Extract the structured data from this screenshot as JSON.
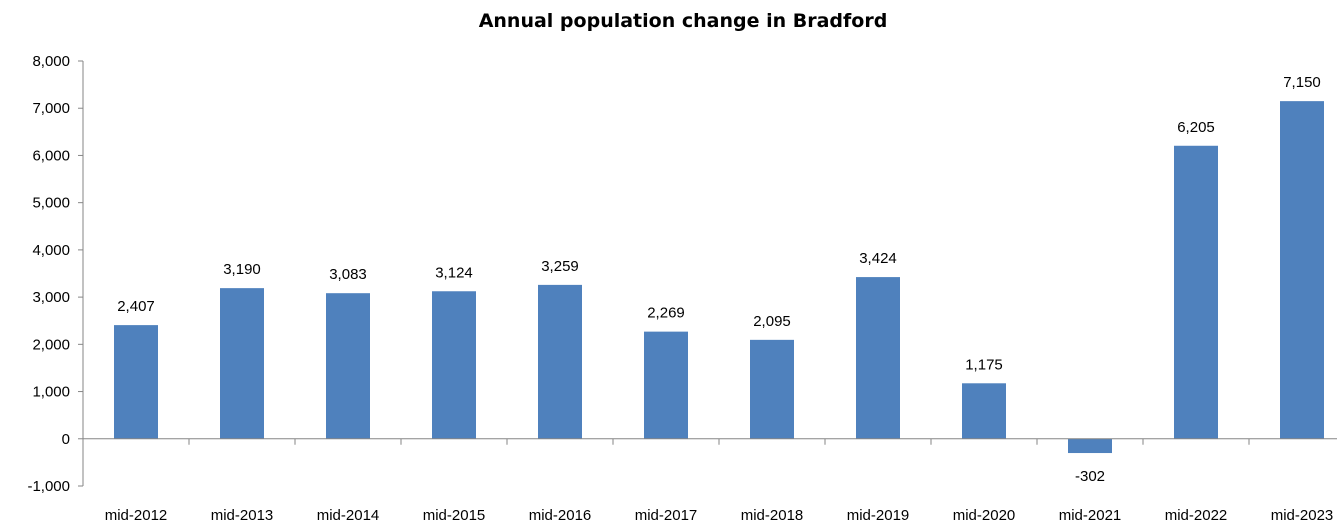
{
  "chart_data": {
    "type": "bar",
    "title": "Annual population change in Bradford",
    "xlabel": "",
    "ylabel": "",
    "categories": [
      "mid-2012",
      "mid-2013",
      "mid-2014",
      "mid-2015",
      "mid-2016",
      "mid-2017",
      "mid-2018",
      "mid-2019",
      "mid-2020",
      "mid-2021",
      "mid-2022",
      "mid-2023"
    ],
    "values": [
      2407,
      3190,
      3083,
      3124,
      3259,
      2269,
      2095,
      3424,
      1175,
      -302,
      6205,
      7150
    ],
    "value_labels": [
      "2,407",
      "3,190",
      "3,083",
      "3,124",
      "3,259",
      "2,269",
      "2,095",
      "3,424",
      "1,175",
      "-302",
      "6,205",
      "7,150"
    ],
    "ylim": [
      -1000,
      8000
    ],
    "yticks": [
      -1000,
      0,
      1000,
      2000,
      3000,
      4000,
      5000,
      6000,
      7000,
      8000
    ],
    "ytick_labels": [
      "-1,000",
      "0",
      "1,000",
      "2,000",
      "3,000",
      "4,000",
      "5,000",
      "6,000",
      "7,000",
      "8,000"
    ],
    "grid": false,
    "bar_color": "#4f81bd",
    "axis_color": "#868686"
  }
}
